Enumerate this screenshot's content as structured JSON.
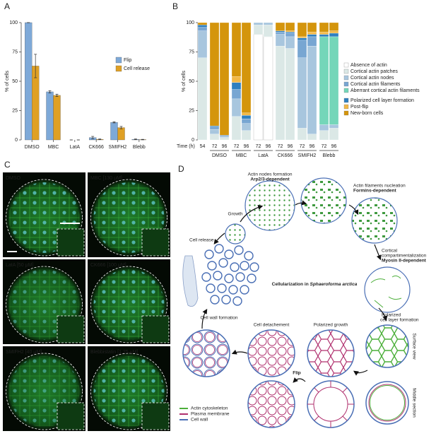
{
  "chart_data": [
    {
      "type": "bar",
      "panel": "A",
      "y_label": "% of cells",
      "categories": [
        "DMSO",
        "MBC",
        "LatA",
        "CK666",
        "SMIFH2",
        "Blebb"
      ],
      "series": [
        {
          "name": "Flip",
          "color": "#7ea9d8",
          "values": [
            100,
            41,
            0,
            2,
            15,
            0.5
          ],
          "errors": [
            0,
            1,
            0,
            1,
            0.5,
            0.3
          ]
        },
        {
          "name": "Cell release",
          "color": "#dfa024",
          "values": [
            63,
            38,
            0,
            0.5,
            10.5,
            0.3
          ],
          "errors": [
            10,
            1,
            0,
            0.3,
            1,
            0.2
          ]
        }
      ],
      "ylim": [
        0,
        100
      ],
      "yticks": [
        0,
        25,
        50,
        75,
        100
      ],
      "legend": "center right"
    },
    {
      "type": "bar",
      "stacked": true,
      "panel": "B",
      "y_label": "% of cells",
      "x_label": "Time (h)",
      "categories": [
        "54",
        "72",
        "96",
        "72",
        "96",
        "72",
        "96",
        "72",
        "96",
        "72",
        "96",
        "72",
        "96"
      ],
      "groups": [
        "DMSO",
        "MBC",
        "LatA",
        "CK666",
        "SMIFH2",
        "Blebb"
      ],
      "series": [
        {
          "name": "Absence of actin",
          "color": "#ffffff",
          "values": [
            0,
            0,
            0,
            0,
            0,
            90,
            88,
            0,
            0,
            0,
            0,
            0,
            0
          ]
        },
        {
          "name": "Cortical actin patches",
          "color": "#dbe8e6",
          "values": [
            70,
            5,
            2,
            20,
            8,
            8,
            10,
            80,
            78,
            10,
            5,
            8,
            10
          ]
        },
        {
          "name": "Cortical actin nodes",
          "color": "#a8c6de",
          "values": [
            23,
            4,
            1,
            15,
            6,
            2,
            2,
            10,
            10,
            60,
            75,
            5,
            3
          ]
        },
        {
          "name": "Cortical actin filaments",
          "color": "#78a6d2",
          "values": [
            3,
            2,
            1,
            8,
            4,
            0,
            0,
            2,
            3,
            15,
            8,
            0,
            0
          ]
        },
        {
          "name": "Aberrant cortical actin filaments",
          "color": "#74d6b9",
          "values": [
            0,
            0,
            0,
            0,
            0,
            0,
            0,
            0,
            0,
            0,
            0,
            75,
            75
          ]
        },
        {
          "name": "Polarized cell layer formation",
          "color": "#2f80c0",
          "values": [
            2,
            1,
            0,
            6,
            3,
            0,
            0,
            1,
            1,
            2,
            2,
            2,
            3
          ]
        },
        {
          "name": "Post-flip",
          "color": "#f2b846",
          "values": [
            0,
            0,
            0,
            5,
            2,
            0,
            0,
            0,
            1,
            1,
            2,
            2,
            2
          ]
        },
        {
          "name": "New-born cells",
          "color": "#d4950c",
          "values": [
            2,
            88,
            96,
            46,
            77,
            0,
            0,
            7,
            7,
            12,
            8,
            8,
            7
          ]
        }
      ],
      "ylim": [
        0,
        100
      ],
      "yticks": [
        0,
        25,
        50,
        75,
        100
      ],
      "legend": "right"
    }
  ],
  "panel_c": {
    "panel": "C",
    "images": [
      "DMSO",
      "MBC [130 μM]",
      "LatA [50 μM]",
      "CK666 [100 μM]",
      "SMIFH2 [40 μM]",
      "Blebbistatin [1.25 μM]"
    ]
  },
  "panel_d": {
    "panel": "D",
    "title": "Cellularization in ",
    "title_italic": "Sphaeroforma arctica",
    "steps": [
      "Growth",
      "Actin nodes formation",
      "Arp2/3-dependent",
      "Actin filaments nucleation",
      "Formins-dependent",
      "Cortical",
      "compartimentalization",
      "Myosin II-dependent",
      "Polarized",
      "cell layer formation",
      "Surface view",
      "Middle section",
      "Polarized growth",
      "Flip",
      "Cell detachement",
      "Cell wall formation",
      "Cell release"
    ],
    "legend": [
      "Actin cytoskeleton",
      "Plasma membrane",
      "Cell wall"
    ]
  }
}
